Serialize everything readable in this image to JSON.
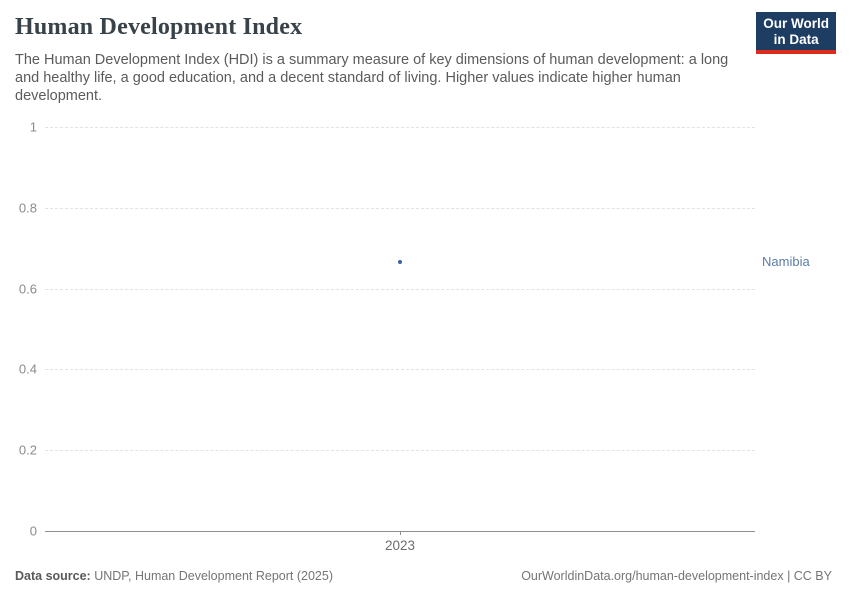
{
  "header": {
    "title": "Human Development Index",
    "subtitle": "The Human Development Index (HDI) is a summary measure of key dimensions of human development: a long and healthy life, a good education, and a decent standard of living. Higher values indicate higher human development."
  },
  "logo": {
    "line1": "Our World",
    "line2": "in Data",
    "bg_color": "#1d3d63",
    "accent_color": "#dc2a1c"
  },
  "chart_data": {
    "type": "scatter",
    "title": "Human Development Index",
    "x": [
      2023
    ],
    "xticklabels": [
      "2023"
    ],
    "series": [
      {
        "name": "Namibia",
        "values": [
          0.665
        ],
        "point_color": "#3b62a8",
        "label_color": "#5b7ca8"
      }
    ],
    "ylim": [
      0,
      1
    ],
    "yticks": [
      0,
      0.2,
      0.4,
      0.6,
      0.8,
      1
    ],
    "grid": true,
    "grid_style": "dashed",
    "legend_position": "right-of-plot"
  },
  "footer": {
    "source_label": "Data source:",
    "source_text": " UNDP, Human Development Report (2025)",
    "right_text": "OurWorldinData.org/human-development-index | CC BY"
  }
}
